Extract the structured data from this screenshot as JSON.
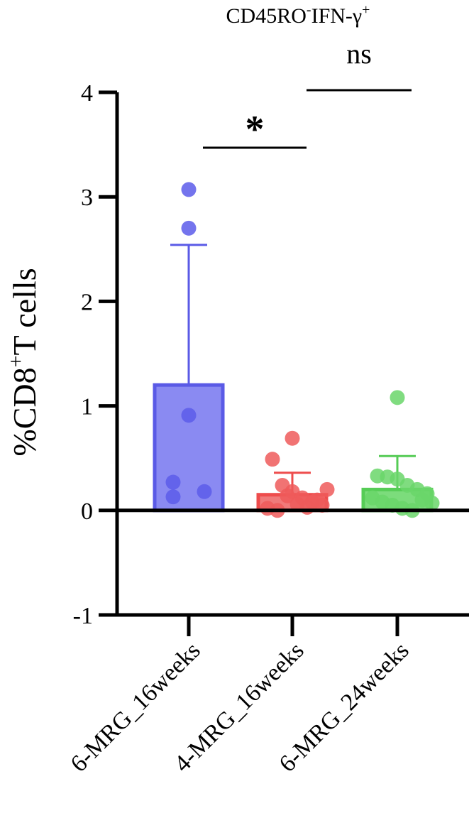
{
  "chart_data": {
    "type": "bar",
    "title": "CD45RO",
    "title_sup1": "-",
    "title_mid": "IFN-γ",
    "title_sup2": "+",
    "ylabel_pre": "%CD8",
    "ylabel_sup": "+",
    "ylabel_post": "T cells",
    "ylim": [
      -1,
      4
    ],
    "yticks": [
      "-1",
      "0",
      "1",
      "2",
      "3",
      "4"
    ],
    "categories": [
      "6-MRG_16weeks",
      "4-MRG_16weeks",
      "6-MRG_24weeks"
    ],
    "colors": {
      "fill": [
        "#8a8af2",
        "#f07a7a",
        "#7cdc7c"
      ],
      "stroke": [
        "#5a5ae6",
        "#ee4c4c",
        "#56cc56"
      ],
      "point": [
        "#5c5cea",
        "#ef5a5a",
        "#6ad66a"
      ]
    },
    "means": [
      1.2,
      0.15,
      0.2
    ],
    "error_upper": [
      2.54,
      0.36,
      0.52
    ],
    "points": [
      [
        3.07,
        2.7,
        0.91,
        0.27,
        0.18,
        0.13
      ],
      [
        0.69,
        0.49,
        0.24,
        0.18,
        0.12,
        0.08,
        0.05,
        0.02,
        0.0,
        0.14,
        0.06,
        0.03,
        0.1,
        0.2
      ],
      [
        1.08,
        0.33,
        0.32,
        0.3,
        0.24,
        0.2,
        0.16,
        0.12,
        0.08,
        0.05,
        0.02,
        0.0,
        0.1,
        0.07
      ]
    ],
    "significance": [
      {
        "between": [
          0,
          1
        ],
        "label": "*",
        "y": 3.47
      },
      {
        "between": [
          1,
          2
        ],
        "label": "ns",
        "y": 4.02
      }
    ]
  }
}
